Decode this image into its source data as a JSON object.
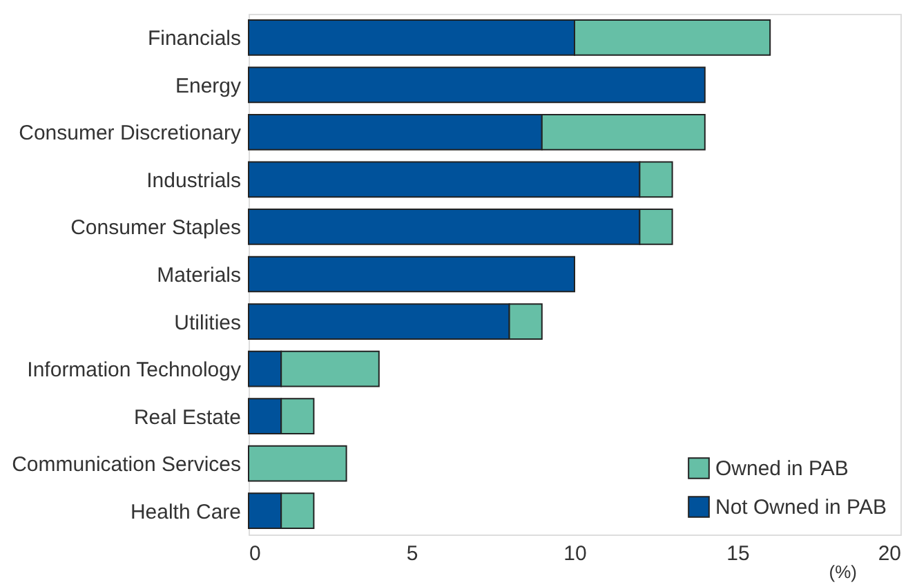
{
  "chart_data": {
    "type": "bar",
    "orientation": "horizontal",
    "stacked": true,
    "xlabel": "(%)",
    "categories": [
      "Financials",
      "Energy",
      "Consumer Discretionary",
      "Industrials",
      "Consumer Staples",
      "Materials",
      "Utilities",
      "Information Technology",
      "Real Estate",
      "Communication Services",
      "Health Care"
    ],
    "series": [
      {
        "name": "Not Owned in PAB",
        "color": "#00529b",
        "values": [
          10,
          14,
          9,
          12,
          12,
          10,
          8,
          1,
          1,
          0,
          1
        ]
      },
      {
        "name": "Owned in PAB",
        "color": "#66bfa6",
        "values": [
          6,
          0,
          5,
          1,
          1,
          0,
          1,
          3,
          1,
          3,
          1
        ]
      }
    ],
    "xlim": [
      0,
      20
    ],
    "xticks": [
      0,
      5,
      10,
      15,
      20
    ],
    "grid": false,
    "legend": "bottom right"
  }
}
